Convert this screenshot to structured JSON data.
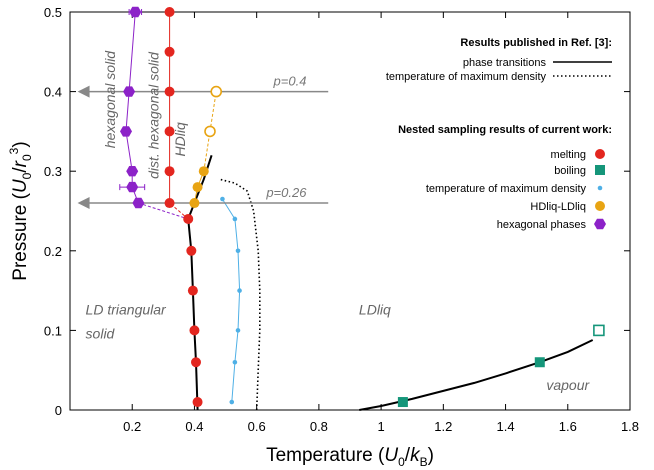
{
  "chart_data": {
    "type": "scatter",
    "xlabel": "Temperature (U_0/k_B)",
    "ylabel": "Pressure (U_0/r_0^3)",
    "xlim": [
      0.0,
      1.8
    ],
    "ylim": [
      0.0,
      0.5
    ],
    "x_ticks": [
      "0.2",
      "0.4",
      "0.6",
      "0.8",
      "1",
      "1.2",
      "1.4",
      "1.6",
      "1.8"
    ],
    "y_ticks": [
      "0",
      "0.1",
      "0.2",
      "0.3",
      "0.4",
      "0.5"
    ],
    "x_tick_values": [
      0.2,
      0.4,
      0.6,
      0.8,
      1.0,
      1.2,
      1.4,
      1.6,
      1.8
    ],
    "y_tick_values": [
      0,
      0.1,
      0.2,
      0.3,
      0.4,
      0.5
    ],
    "legend": {
      "position": "upper-right",
      "published_header": "Results published in Ref. [3]:",
      "published_entries": [
        "phase transitions",
        "temperature of maximum density"
      ],
      "current_header": "Nested sampling results of current work:",
      "current_entries": [
        "melting",
        "boiling",
        "temperature of maximum density",
        "HDliq-LDliq",
        "hexagonal phases"
      ]
    },
    "region_labels": {
      "hexagonal_solid": "hexagonal solid",
      "dist_hexagonal_solid": "dist. hexagonal solid",
      "hdliq": "HDliq",
      "ld_triangular_1": "LD triangular",
      "ld_triangular_2": "solid",
      "ldliq": "LDliq",
      "vapour": "vapour"
    },
    "pressure_lines": [
      {
        "label": "p=0.4",
        "p": 0.4
      },
      {
        "label": "p=0.26",
        "p": 0.26
      }
    ],
    "colors": {
      "melting": "#e3261f",
      "boiling": "#15967a",
      "tmd": "#4fb0e6",
      "hdliq_ldliq": "#e8a413",
      "hexagonal": "#8c22c8",
      "published": "#000000"
    },
    "series": [
      {
        "name": "melting",
        "marker": "circle",
        "points": [
          [
            0.41,
            0.01
          ],
          [
            0.405,
            0.06
          ],
          [
            0.4,
            0.1
          ],
          [
            0.395,
            0.15
          ],
          [
            0.39,
            0.2
          ],
          [
            0.38,
            0.24
          ],
          [
            0.32,
            0.26
          ],
          [
            0.32,
            0.3
          ],
          [
            0.32,
            0.35
          ],
          [
            0.32,
            0.4
          ],
          [
            0.32,
            0.45
          ],
          [
            0.32,
            0.5
          ]
        ]
      },
      {
        "name": "boiling",
        "marker": "square",
        "filled_points": [
          [
            1.07,
            0.01
          ],
          [
            1.51,
            0.06
          ]
        ],
        "open_points": [
          [
            1.7,
            0.1
          ]
        ]
      },
      {
        "name": "temperature of maximum density",
        "marker": "dot",
        "points": [
          [
            0.52,
            0.01
          ],
          [
            0.53,
            0.06
          ],
          [
            0.54,
            0.1
          ],
          [
            0.545,
            0.15
          ],
          [
            0.54,
            0.2
          ],
          [
            0.53,
            0.24
          ],
          [
            0.49,
            0.265
          ]
        ]
      },
      {
        "name": "HDliq-LDliq",
        "marker": "circle",
        "filled_points": [
          [
            0.4,
            0.26
          ],
          [
            0.41,
            0.28
          ],
          [
            0.43,
            0.3
          ]
        ],
        "open_points": [
          [
            0.45,
            0.35
          ],
          [
            0.47,
            0.4
          ]
        ]
      },
      {
        "name": "hexagonal phases",
        "marker": "hexagon",
        "points": [
          [
            0.22,
            0.26
          ],
          [
            0.2,
            0.28
          ],
          [
            0.2,
            0.3
          ],
          [
            0.18,
            0.35
          ],
          [
            0.19,
            0.4
          ],
          [
            0.21,
            0.5
          ]
        ],
        "xerr": [
          0.0,
          0.04,
          0.0,
          0.0,
          0.0,
          0.02
        ]
      },
      {
        "name": "phase transitions",
        "style": "solid",
        "segments": [
          [
            [
              0.41,
              0.0
            ],
            [
              0.405,
              0.06
            ],
            [
              0.4,
              0.1
            ],
            [
              0.395,
              0.15
            ],
            [
              0.39,
              0.2
            ],
            [
              0.38,
              0.24
            ],
            [
              0.4,
              0.26
            ],
            [
              0.43,
              0.29
            ],
            [
              0.455,
              0.32
            ]
          ],
          [
            [
              0.93,
              0.0
            ],
            [
              1.0,
              0.005
            ],
            [
              1.1,
              0.014
            ],
            [
              1.2,
              0.024
            ],
            [
              1.3,
              0.034
            ],
            [
              1.4,
              0.046
            ],
            [
              1.51,
              0.06
            ],
            [
              1.6,
              0.073
            ],
            [
              1.68,
              0.088
            ]
          ]
        ]
      },
      {
        "name": "temperature of maximum density (Ref. [3])",
        "style": "dotted",
        "points": [
          [
            0.6,
            0.0
          ],
          [
            0.605,
            0.05
          ],
          [
            0.61,
            0.1
          ],
          [
            0.61,
            0.15
          ],
          [
            0.605,
            0.2
          ],
          [
            0.59,
            0.25
          ],
          [
            0.57,
            0.275
          ],
          [
            0.53,
            0.285
          ],
          [
            0.48,
            0.29
          ]
        ]
      }
    ]
  }
}
